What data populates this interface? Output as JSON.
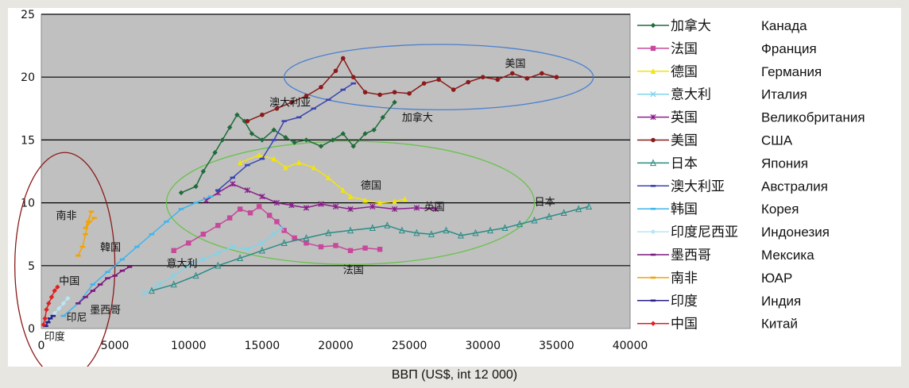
{
  "chart_data": {
    "type": "line",
    "xlabel": "ВВП (US$, int 12 000)",
    "ylabel": "",
    "xlim": [
      0,
      40000
    ],
    "ylim": [
      0,
      25
    ],
    "x_ticks": [
      "0",
      "5000",
      "10000",
      "15000",
      "20000",
      "25000",
      "30000",
      "35000",
      "40000"
    ],
    "y_ticks": [
      "0",
      "5",
      "10",
      "15",
      "20",
      "25"
    ],
    "grid": "horizontal",
    "plot_background": "#c0c0c0",
    "legend_position": "right",
    "series": [
      {
        "name": "加拿大",
        "translation": "Канада",
        "color": "#1f6b3a",
        "marker": "diamond",
        "points": [
          [
            9500,
            10.8
          ],
          [
            10500,
            11.3
          ],
          [
            11000,
            12.5
          ],
          [
            11800,
            14.0
          ],
          [
            12300,
            15.0
          ],
          [
            12800,
            16.0
          ],
          [
            13300,
            17.0
          ],
          [
            13800,
            16.5
          ],
          [
            14300,
            15.5
          ],
          [
            15000,
            15.0
          ],
          [
            15800,
            15.8
          ],
          [
            16600,
            15.2
          ],
          [
            17200,
            14.8
          ],
          [
            18000,
            15.0
          ],
          [
            19000,
            14.5
          ],
          [
            19800,
            15.0
          ],
          [
            20500,
            15.5
          ],
          [
            21200,
            14.5
          ],
          [
            22000,
            15.5
          ],
          [
            22600,
            15.8
          ],
          [
            23200,
            16.8
          ],
          [
            24000,
            18.0
          ]
        ]
      },
      {
        "name": "法国",
        "translation": "Франция",
        "color": "#c8489a",
        "marker": "square",
        "points": [
          [
            9000,
            6.2
          ],
          [
            10000,
            6.8
          ],
          [
            11000,
            7.5
          ],
          [
            12000,
            8.2
          ],
          [
            12800,
            8.8
          ],
          [
            13500,
            9.5
          ],
          [
            14200,
            9.2
          ],
          [
            14800,
            9.7
          ],
          [
            15500,
            9.0
          ],
          [
            16000,
            8.5
          ],
          [
            16500,
            7.8
          ],
          [
            17200,
            7.2
          ],
          [
            18000,
            6.8
          ],
          [
            19000,
            6.5
          ],
          [
            20000,
            6.6
          ],
          [
            21000,
            6.2
          ],
          [
            22000,
            6.4
          ],
          [
            23000,
            6.3
          ]
        ]
      },
      {
        "name": "德国",
        "translation": "Германия",
        "color": "#f2e40c",
        "marker": "triangle",
        "points": [
          [
            13500,
            13.2
          ],
          [
            14800,
            13.8
          ],
          [
            15800,
            13.5
          ],
          [
            16600,
            12.8
          ],
          [
            17500,
            13.2
          ],
          [
            18500,
            12.8
          ],
          [
            19500,
            12.0
          ],
          [
            20500,
            11.0
          ],
          [
            21000,
            10.5
          ],
          [
            22000,
            10.2
          ],
          [
            23000,
            10.0
          ],
          [
            24000,
            10.1
          ],
          [
            24700,
            10.3
          ]
        ]
      },
      {
        "name": "意大利",
        "translation": "Италия",
        "color": "#7fd4ea",
        "marker": "x",
        "points": [
          [
            7000,
            2.8
          ],
          [
            8000,
            3.5
          ],
          [
            9000,
            4.2
          ],
          [
            10000,
            5.0
          ],
          [
            11000,
            5.5
          ],
          [
            12000,
            6.0
          ],
          [
            13000,
            6.5
          ],
          [
            14000,
            6.3
          ],
          [
            15000,
            6.8
          ],
          [
            15800,
            7.5
          ],
          [
            16300,
            8.0
          ]
        ]
      },
      {
        "name": "英国",
        "translation": "Великобритания",
        "color": "#8a1f8c",
        "marker": "asterisk",
        "points": [
          [
            11200,
            10.2
          ],
          [
            12000,
            10.8
          ],
          [
            13000,
            11.5
          ],
          [
            14000,
            11.0
          ],
          [
            15000,
            10.5
          ],
          [
            16000,
            10.0
          ],
          [
            17000,
            9.8
          ],
          [
            18000,
            9.6
          ],
          [
            19000,
            9.9
          ],
          [
            20000,
            9.7
          ],
          [
            21000,
            9.5
          ],
          [
            22500,
            9.7
          ],
          [
            24000,
            9.5
          ],
          [
            25500,
            9.6
          ],
          [
            26800,
            9.5
          ]
        ]
      },
      {
        "name": "美国",
        "translation": "США",
        "color": "#8b1a1a",
        "marker": "circle",
        "points": [
          [
            14000,
            16.5
          ],
          [
            15000,
            17.0
          ],
          [
            16000,
            17.5
          ],
          [
            17000,
            18.0
          ],
          [
            18000,
            18.5
          ],
          [
            19000,
            19.2
          ],
          [
            20000,
            20.5
          ],
          [
            20500,
            21.5
          ],
          [
            21200,
            20.0
          ],
          [
            22000,
            18.8
          ],
          [
            23000,
            18.6
          ],
          [
            24000,
            18.8
          ],
          [
            25000,
            18.7
          ],
          [
            26000,
            19.5
          ],
          [
            27000,
            19.8
          ],
          [
            28000,
            19.0
          ],
          [
            29000,
            19.6
          ],
          [
            30000,
            20.0
          ],
          [
            31000,
            19.8
          ],
          [
            32000,
            20.3
          ],
          [
            33000,
            19.9
          ],
          [
            34000,
            20.3
          ],
          [
            35000,
            20.0
          ]
        ]
      },
      {
        "name": "日本",
        "translation": "Япония",
        "color": "#2a8c86",
        "marker": "open-triangle",
        "points": [
          [
            7500,
            3.0
          ],
          [
            9000,
            3.5
          ],
          [
            10500,
            4.2
          ],
          [
            12000,
            5.0
          ],
          [
            13500,
            5.6
          ],
          [
            15000,
            6.2
          ],
          [
            16500,
            6.8
          ],
          [
            18000,
            7.2
          ],
          [
            19500,
            7.6
          ],
          [
            21000,
            7.8
          ],
          [
            22500,
            8.0
          ],
          [
            23500,
            8.2
          ],
          [
            24500,
            7.8
          ],
          [
            25500,
            7.6
          ],
          [
            26500,
            7.5
          ],
          [
            27500,
            7.8
          ],
          [
            28500,
            7.4
          ],
          [
            29500,
            7.6
          ],
          [
            30500,
            7.8
          ],
          [
            31500,
            8.0
          ],
          [
            32500,
            8.3
          ],
          [
            33500,
            8.6
          ],
          [
            34500,
            8.9
          ],
          [
            35500,
            9.2
          ],
          [
            36500,
            9.5
          ],
          [
            37200,
            9.7
          ]
        ]
      },
      {
        "name": "澳大利亚",
        "translation": "Австралия",
        "color": "#3a46b0",
        "marker": "dash",
        "points": [
          [
            12000,
            11.0
          ],
          [
            13000,
            12.0
          ],
          [
            14000,
            13.0
          ],
          [
            15000,
            13.5
          ],
          [
            15800,
            15.0
          ],
          [
            16500,
            16.5
          ],
          [
            17500,
            16.8
          ],
          [
            18500,
            17.5
          ],
          [
            19500,
            18.2
          ],
          [
            20500,
            19.0
          ],
          [
            21200,
            19.5
          ]
        ]
      },
      {
        "name": "韩国",
        "translation": "Корея",
        "color": "#3fb6ee",
        "marker": "dash",
        "points": [
          [
            1500,
            1.0
          ],
          [
            2500,
            2.0
          ],
          [
            3500,
            3.5
          ],
          [
            4500,
            4.5
          ],
          [
            5500,
            5.5
          ],
          [
            6500,
            6.5
          ],
          [
            7500,
            7.5
          ],
          [
            8500,
            8.5
          ],
          [
            9500,
            9.5
          ],
          [
            10500,
            10.0
          ],
          [
            11500,
            10.5
          ]
        ]
      },
      {
        "name": "印度尼西亚",
        "translation": "Индонезия",
        "color": "#b8e6f5",
        "marker": "diamond",
        "points": [
          [
            600,
            0.8
          ],
          [
            900,
            1.2
          ],
          [
            1200,
            1.6
          ],
          [
            1500,
            2.0
          ],
          [
            1800,
            2.4
          ]
        ]
      },
      {
        "name": "墨西哥",
        "translation": "Мексика",
        "color": "#7b1a7d",
        "marker": "dash",
        "points": [
          [
            2500,
            2.0
          ],
          [
            3000,
            2.5
          ],
          [
            3500,
            3.0
          ],
          [
            4000,
            3.5
          ],
          [
            4500,
            4.0
          ],
          [
            5000,
            4.2
          ],
          [
            5500,
            4.6
          ],
          [
            6000,
            4.9
          ]
        ]
      },
      {
        "name": "南非",
        "translation": "ЮАР",
        "color": "#f4a300",
        "marker": "dash",
        "points": [
          [
            2500,
            5.8
          ],
          [
            2800,
            6.5
          ],
          [
            3000,
            7.5
          ],
          [
            3200,
            8.5
          ],
          [
            3400,
            9.3
          ],
          [
            3000,
            8.0
          ],
          [
            3600,
            8.8
          ]
        ]
      },
      {
        "name": "印度",
        "translation": "Индия",
        "color": "#26208a",
        "marker": "dash",
        "points": [
          [
            300,
            0.2
          ],
          [
            450,
            0.5
          ],
          [
            600,
            0.8
          ],
          [
            800,
            1.0
          ]
        ]
      },
      {
        "name": "中国",
        "translation": "Китай",
        "color": "#e02020",
        "marker": "diamond",
        "points": [
          [
            150,
            0.3
          ],
          [
            250,
            0.8
          ],
          [
            350,
            1.5
          ],
          [
            500,
            2.0
          ],
          [
            700,
            2.5
          ],
          [
            900,
            3.0
          ],
          [
            1100,
            3.3
          ]
        ]
      }
    ],
    "annotations": [
      {
        "text": "美国",
        "at": [
          31500,
          20.8
        ]
      },
      {
        "text": "澳大利亚",
        "at": [
          15500,
          17.7
        ]
      },
      {
        "text": "加拿大",
        "at": [
          24500,
          16.5
        ]
      },
      {
        "text": "德国",
        "at": [
          21700,
          11.1
        ]
      },
      {
        "text": "英国",
        "at": [
          26000,
          9.4
        ]
      },
      {
        "text": "日本",
        "at": [
          33500,
          9.8
        ]
      },
      {
        "text": "南非",
        "at": [
          1000,
          8.7
        ]
      },
      {
        "text": "韓国",
        "at": [
          4000,
          6.2
        ]
      },
      {
        "text": "意大利",
        "at": [
          8500,
          4.9
        ]
      },
      {
        "text": "中国",
        "at": [
          1200,
          3.5
        ]
      },
      {
        "text": "墨西哥",
        "at": [
          3300,
          1.2
        ]
      },
      {
        "text": "印尼",
        "at": [
          1700,
          0.6
        ]
      },
      {
        "text": "法国",
        "at": [
          20500,
          4.4
        ]
      },
      {
        "text": "印度",
        "at": [
          200,
          -0.9
        ]
      }
    ],
    "ellipses": [
      {
        "name": "high-income",
        "color": "#4a7fd0",
        "center": [
          27000,
          20.0
        ],
        "radius": [
          10500,
          2.6
        ]
      },
      {
        "name": "middle-income",
        "color": "#69c24c",
        "center": [
          21000,
          10.0
        ],
        "radius": [
          12500,
          4.9
        ]
      },
      {
        "name": "developing",
        "color": "#8b1a1a",
        "center": [
          1600,
          5.0
        ],
        "radius": [
          3400,
          9.0
        ]
      }
    ]
  }
}
